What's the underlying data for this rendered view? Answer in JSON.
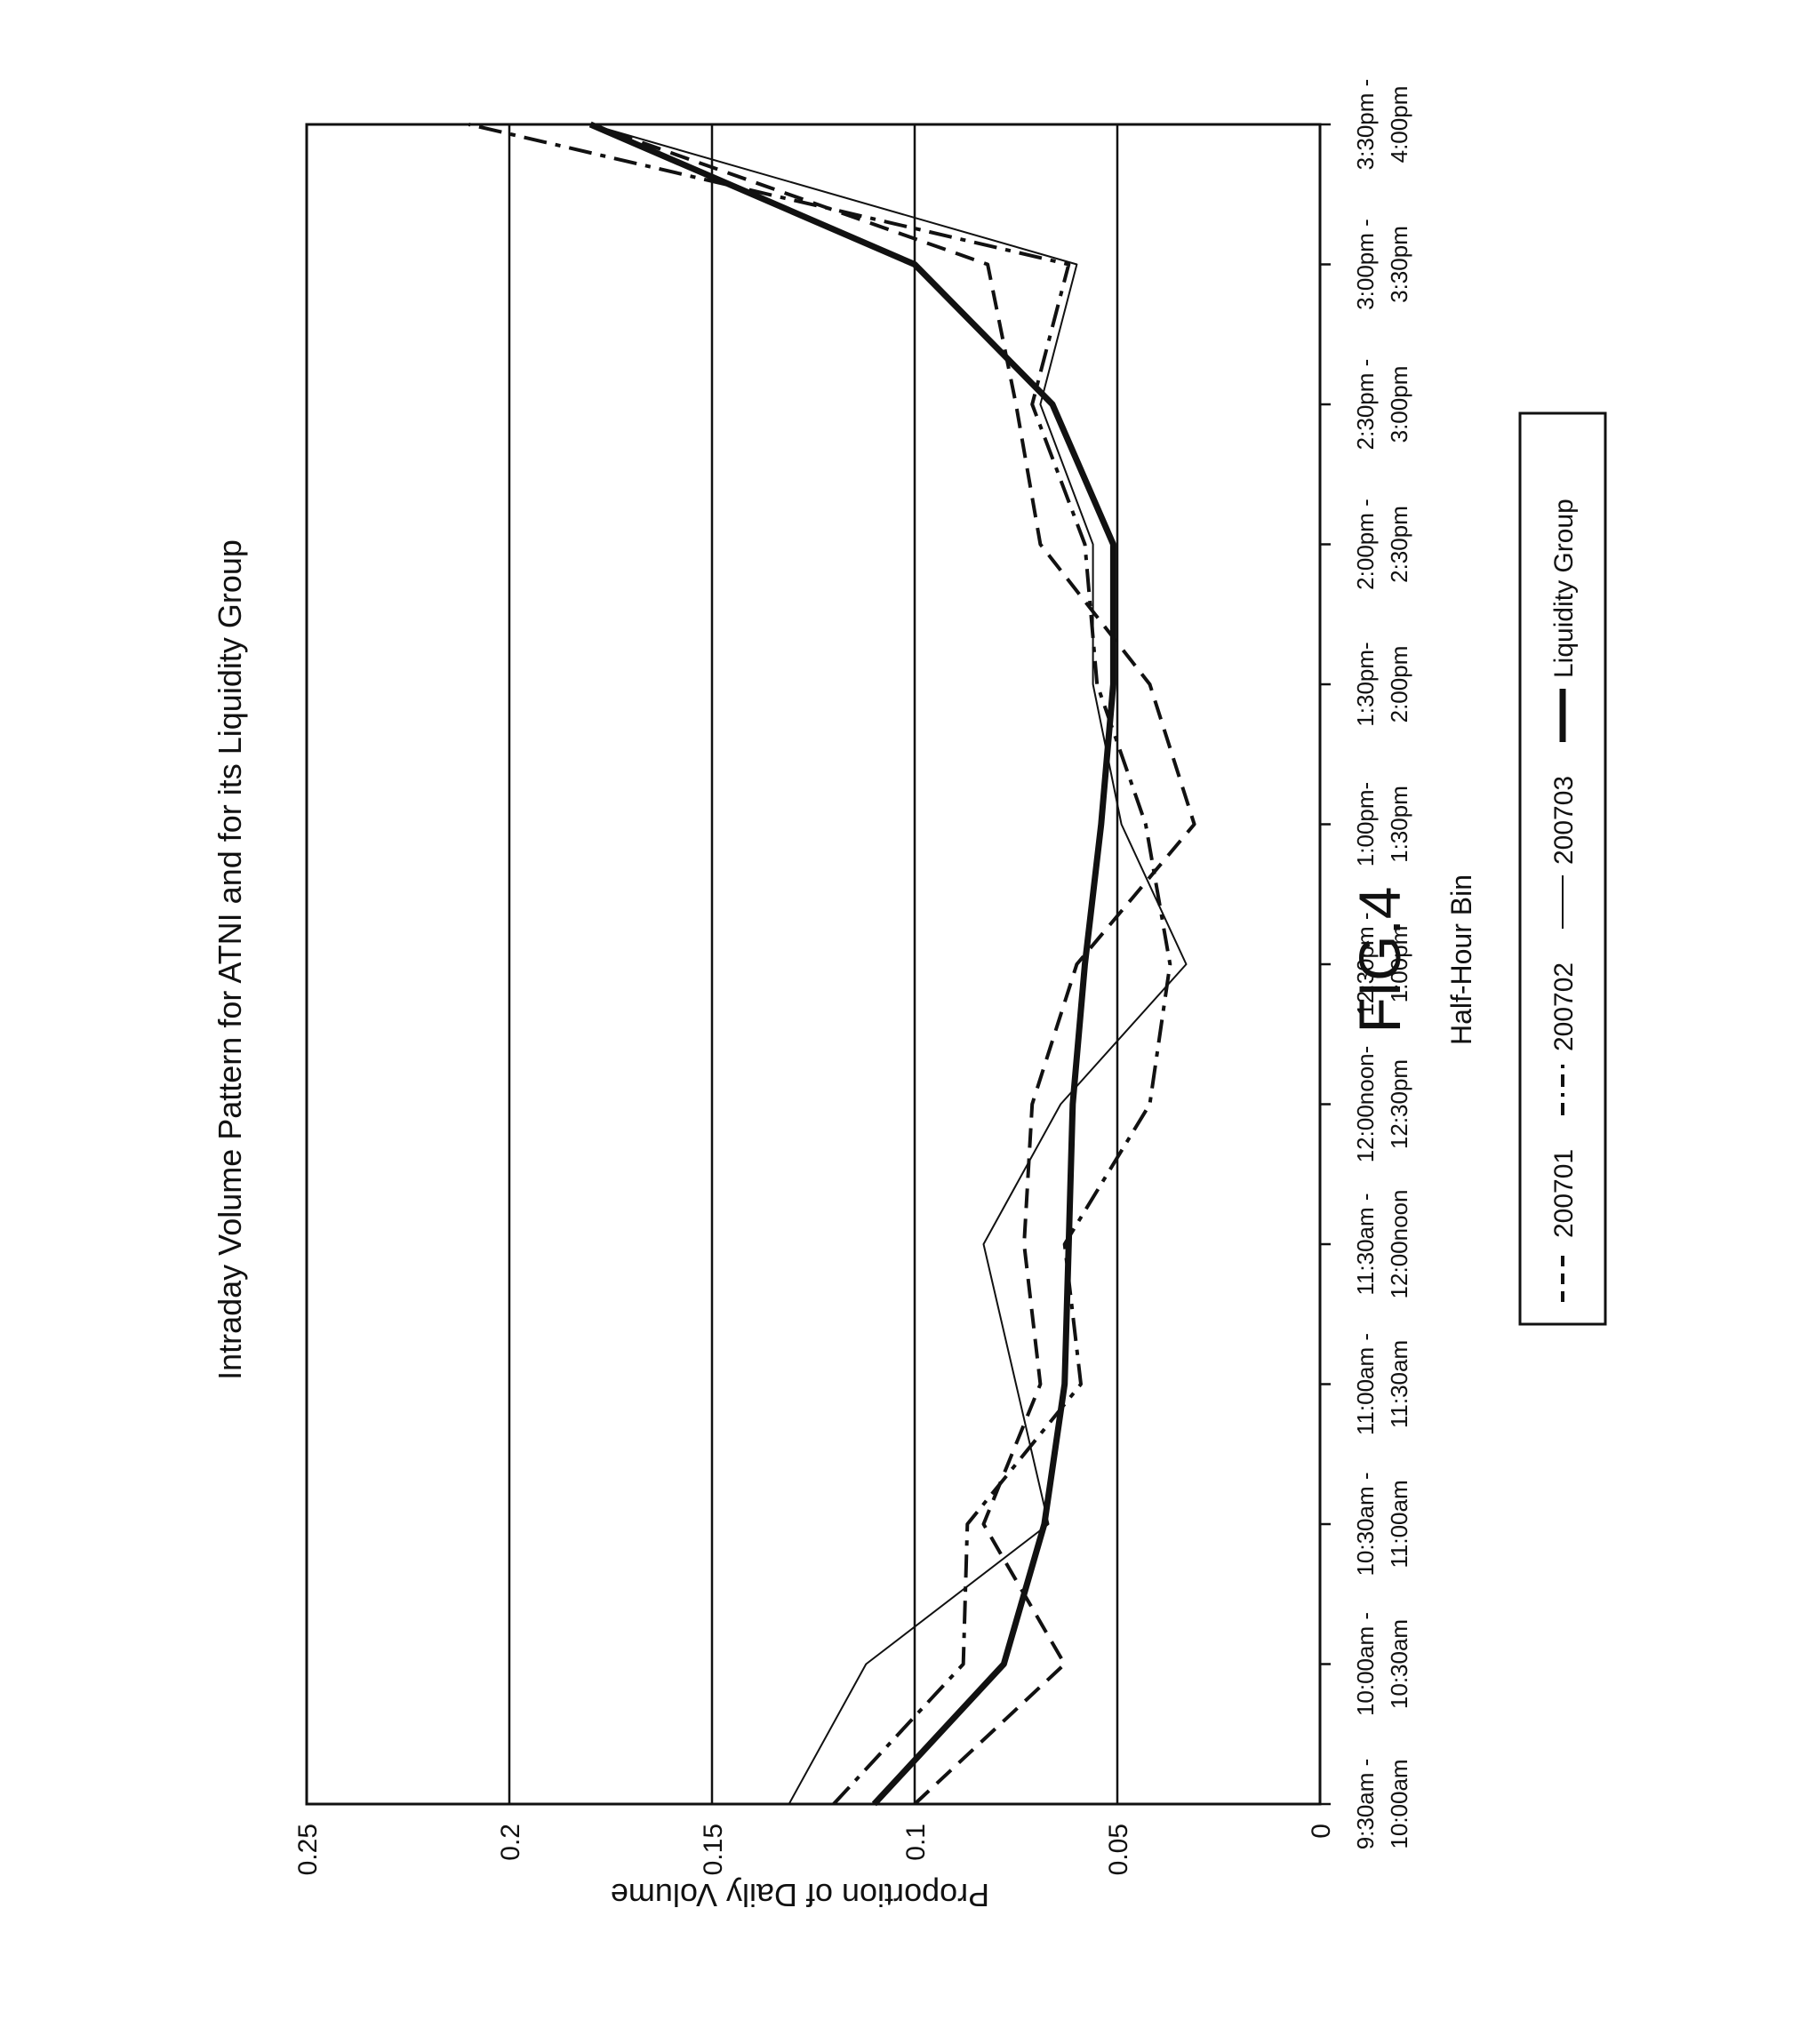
{
  "figure_label": "FIG.4",
  "chart_data": {
    "type": "line",
    "title": "Intraday Volume Pattern for ATNI and for its Liquidity Group",
    "xlabel": "Half-Hour Bin",
    "ylabel": "Proportion of Daily Volume",
    "ylim": [
      0,
      0.25
    ],
    "yticks": [
      0,
      0.05,
      0.1,
      0.15,
      0.2,
      0.25
    ],
    "ytick_labels": [
      "0",
      "0.05",
      "0.1",
      "0.15",
      "0.2",
      "0.25"
    ],
    "grid": "horizontal",
    "legend_position": "bottom",
    "categories": [
      [
        "9:30am -",
        "10:00am"
      ],
      [
        "10:00am -",
        "10:30am"
      ],
      [
        "10:30am -",
        "11:00am"
      ],
      [
        "11:00am -",
        "11:30am"
      ],
      [
        "11:30am -",
        "12:00noon"
      ],
      [
        "12:00noon-",
        "12:30pm"
      ],
      [
        "12:30pm -",
        "1:00pm"
      ],
      [
        "1:00pm-",
        "1:30pm"
      ],
      [
        "1:30pm-",
        "2:00pm"
      ],
      [
        "2:00pm -",
        "2:30pm"
      ],
      [
        "2:30pm -",
        "3:00pm"
      ],
      [
        "3:00pm -",
        "3:30pm"
      ],
      [
        "3:30pm -",
        "4:00pm"
      ]
    ],
    "series": [
      {
        "name": "200701",
        "style": "dashed",
        "color": "#111111",
        "values": [
          0.1,
          0.063,
          0.083,
          0.069,
          0.073,
          0.071,
          0.06,
          0.031,
          0.042,
          0.069,
          0.075,
          0.082,
          0.18
        ]
      },
      {
        "name": "200702",
        "style": "dash-dot",
        "color": "#111111",
        "values": [
          0.12,
          0.088,
          0.087,
          0.059,
          0.063,
          0.042,
          0.037,
          0.043,
          0.055,
          0.058,
          0.071,
          0.062,
          0.21
        ]
      },
      {
        "name": "200703",
        "style": "thin",
        "color": "#111111",
        "values": [
          0.131,
          0.112,
          0.067,
          0.075,
          0.083,
          0.064,
          0.033,
          0.049,
          0.056,
          0.056,
          0.069,
          0.06,
          0.18
        ]
      },
      {
        "name": "Liquidity Group",
        "style": "bold",
        "color": "#111111",
        "values": [
          0.11,
          0.078,
          0.068,
          0.063,
          0.062,
          0.061,
          0.058,
          0.054,
          0.051,
          0.051,
          0.066,
          0.1,
          0.18
        ]
      }
    ]
  }
}
